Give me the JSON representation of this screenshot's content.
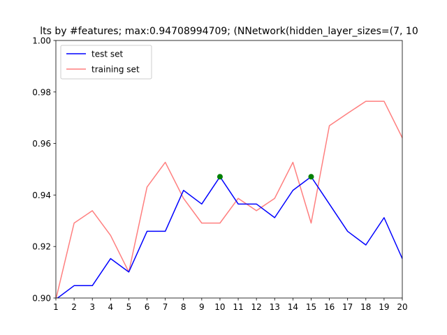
{
  "chart_data": {
    "type": "line",
    "title": "lts by #features; max:0.94708994709; (NNetwork(hidden_layer_sizes=(7, 10",
    "xlabel": "",
    "ylabel": "",
    "x": [
      1,
      2,
      3,
      4,
      5,
      6,
      7,
      8,
      9,
      10,
      11,
      12,
      13,
      14,
      15,
      16,
      17,
      18,
      19,
      20
    ],
    "xlim": [
      1,
      20
    ],
    "ylim": [
      0.9,
      1.0
    ],
    "xticks": [
      "1",
      "2",
      "3",
      "4",
      "5",
      "6",
      "7",
      "8",
      "9",
      "10",
      "11",
      "12",
      "13",
      "14",
      "15",
      "16",
      "17",
      "18",
      "19",
      "20"
    ],
    "yticks": [
      "0.90",
      "0.92",
      "0.94",
      "0.96",
      "0.98",
      "1.00"
    ],
    "series": [
      {
        "name": "test set",
        "color": "#0000ff",
        "values": [
          0.8995,
          0.9048,
          0.9048,
          0.9153,
          0.9101,
          0.9259,
          0.9259,
          0.9418,
          0.9365,
          0.9471,
          0.9365,
          0.9365,
          0.9312,
          0.9418,
          0.9471,
          0.9365,
          0.9259,
          0.9206,
          0.9312,
          0.9153
        ]
      },
      {
        "name": "training set",
        "color": "#ff7f7f",
        "values": [
          0.8995,
          0.9291,
          0.9339,
          0.9243,
          0.9101,
          0.9431,
          0.9527,
          0.9387,
          0.9291,
          0.9291,
          0.9387,
          0.9339,
          0.9387,
          0.9527,
          0.9291,
          0.9669,
          0.9717,
          0.9764,
          0.9764,
          0.9622
        ]
      }
    ],
    "markers": {
      "color": "#008000",
      "points": [
        {
          "x": 10,
          "y": 0.9471
        },
        {
          "x": 15,
          "y": 0.9471
        }
      ]
    },
    "legend_position": "top-left",
    "grid": false
  }
}
